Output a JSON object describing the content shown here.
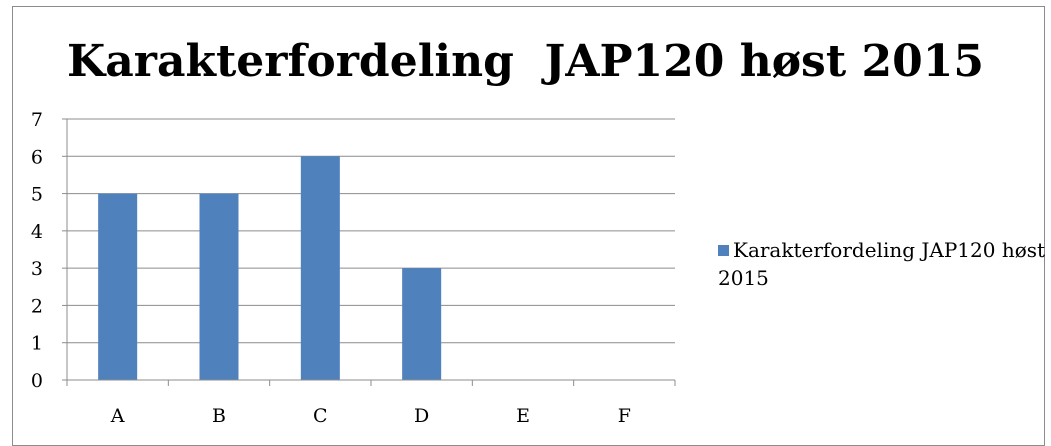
{
  "chart_data": {
    "type": "bar",
    "title": "Karakterfordeling  JAP120 høst 2015",
    "categories": [
      "A",
      "B",
      "C",
      "D",
      "E",
      "F"
    ],
    "series": [
      {
        "name": "Karakterfordeling  JAP120 høst 2015",
        "values": [
          5,
          5,
          6,
          3,
          0,
          0
        ],
        "color": "#4f81bd"
      }
    ],
    "y_ticks": [
      "0",
      "1",
      "2",
      "3",
      "4",
      "5",
      "6",
      "7"
    ],
    "ylim": [
      0,
      7
    ],
    "grid": true,
    "legend_position": "right"
  }
}
